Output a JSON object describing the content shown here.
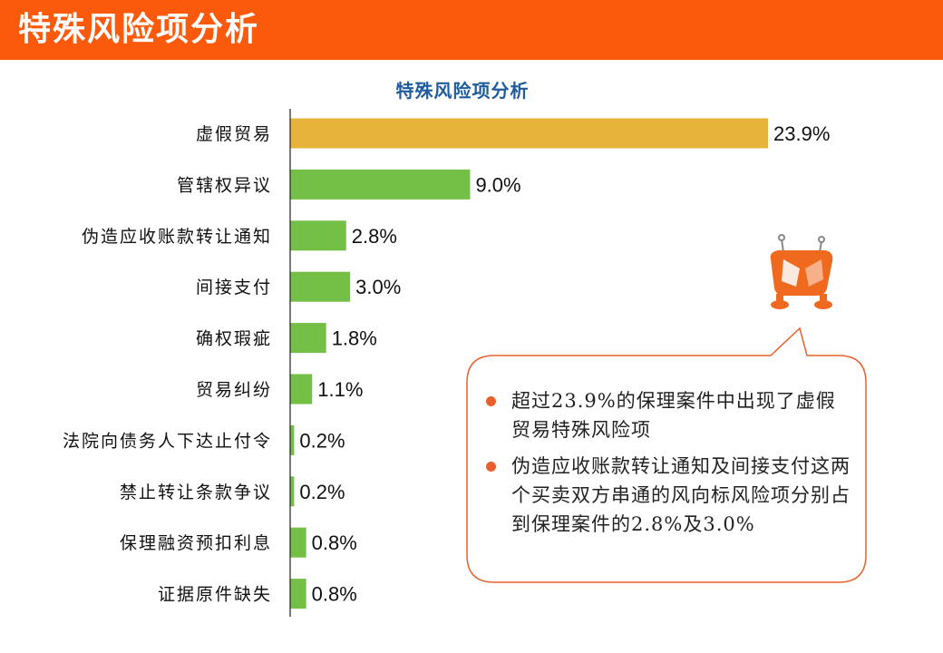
{
  "header": {
    "title": "特殊风险项分析"
  },
  "colors": {
    "banner": "#fb5a0d",
    "highlight_bar": "#e8b33a",
    "bar": "#74bf45",
    "accent": "#e8612c"
  },
  "chart_data": {
    "type": "bar",
    "orientation": "horizontal",
    "title": "特殊风险项分析",
    "categories": [
      "虚假贸易",
      "管辖权异议",
      "伪造应收账款转让通知",
      "间接支付",
      "确权瑕疵",
      "贸易纠纷",
      "法院向债务人下达止付令",
      "禁止转让条款争议",
      "保理融资预扣利息",
      "证据原件缺失"
    ],
    "values": [
      23.9,
      9.0,
      2.8,
      3.0,
      1.8,
      1.1,
      0.2,
      0.2,
      0.8,
      0.8
    ],
    "value_labels": [
      "23.9%",
      "9.0%",
      "2.8%",
      "3.0%",
      "1.8%",
      "1.1%",
      "0.2%",
      "0.2%",
      "0.8%",
      "0.8%"
    ],
    "highlight_index": 0,
    "xlim": [
      0,
      23.9
    ]
  },
  "callout": {
    "bullets": [
      "超过23.9%的保理案件中出现了虚假贸易特殊风险项",
      "伪造应收账款转让通知及间接支付这两个买卖双方串通的风向标风险项分别占到保理案件的2.8%及3.0%"
    ]
  },
  "icons": {
    "mascot": "robot-mascot-icon",
    "bullet": "bullet-dot-icon"
  }
}
